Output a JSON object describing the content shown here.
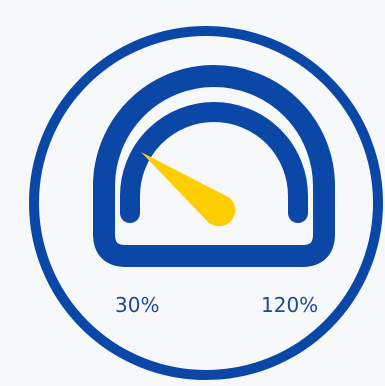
{
  "gauge": {
    "min_label": "30%",
    "max_label": "120%",
    "ring_color": "#0a47a6",
    "needle_color": "#ffce00",
    "background_color": "#f7f8fa",
    "icon": "speedometer-icon"
  }
}
